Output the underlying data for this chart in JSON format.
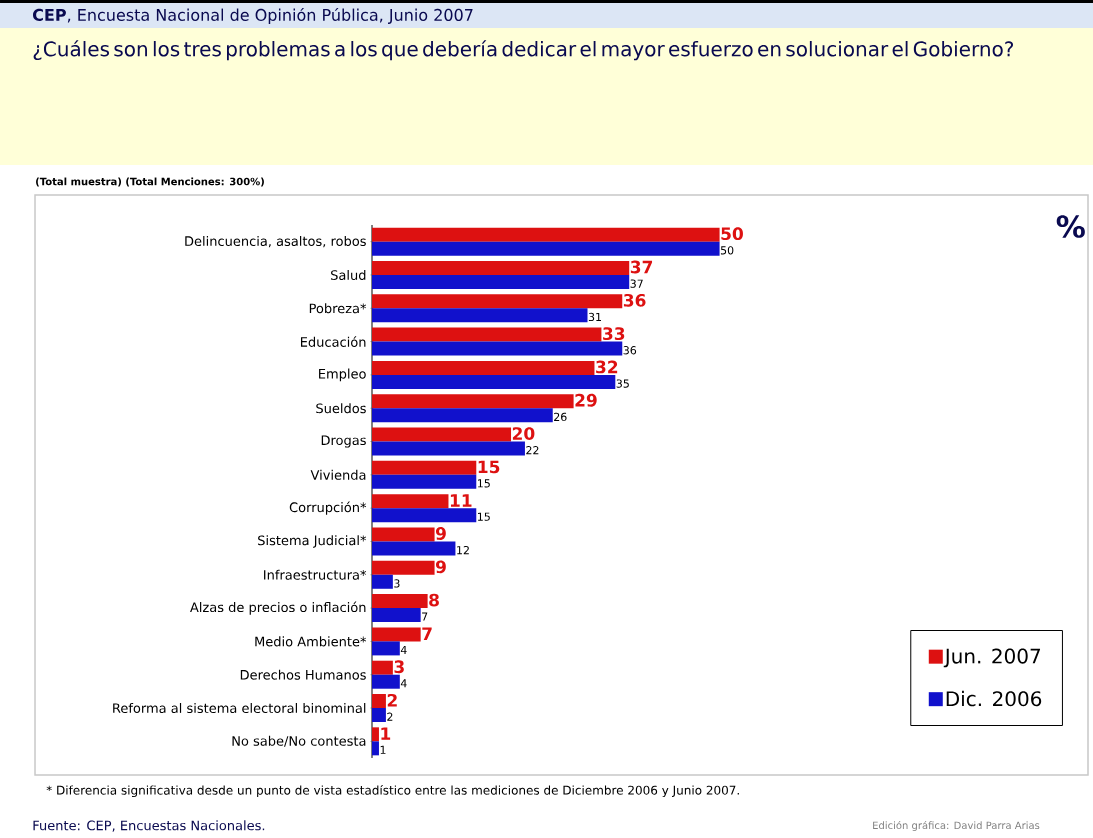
{
  "chart_data": {
    "type": "bar",
    "orientation": "horizontal",
    "title": "¿Cuáles son los tres problemas a los que debería dedicar el mayor esfuerzo en solucionar el Gobierno?",
    "subtitle": "(Total muestra)  (Total Menciones: 300%)",
    "categories": [
      "Delincuencia, asaltos, robos",
      "Salud",
      "Pobreza*",
      "Educación",
      "Empleo",
      "Sueldos",
      "Drogas",
      "Vivienda",
      "Corrupción*",
      "Sistema Judicial*",
      "Infraestructura*",
      "Alzas de precios o inflación",
      "Medio Ambiente*",
      "Derechos Humanos",
      "Reforma al sistema electoral binominal",
      "No sabe/No contesta"
    ],
    "series": [
      {
        "name": "Jun. 2007",
        "color": "#dd1111",
        "values": [
          50,
          37,
          36,
          33,
          32,
          29,
          20,
          15,
          11,
          9,
          9,
          8,
          7,
          3,
          2,
          1
        ]
      },
      {
        "name": "Dic. 2006",
        "color": "#1111cc",
        "values": [
          50,
          37,
          31,
          36,
          35,
          26,
          22,
          15,
          15,
          12,
          3,
          7,
          4,
          4,
          2,
          1
        ]
      }
    ],
    "xlim": [
      0,
      103
    ],
    "data_labels": true,
    "legend": "bottom right",
    "annotations": [
      "**CEP**, Encuesta Nacional de Opinión Pública, Junio 2007",
      "%",
      "* Diferencia significativa desde un punto de vista estadístico entre las mediciones de Diciembre 2006 y Junio 2007.",
      "Fuente: CEP, Encuestas Nacionales.",
      "Edición gráfica: David Parra Arias"
    ]
  }
}
